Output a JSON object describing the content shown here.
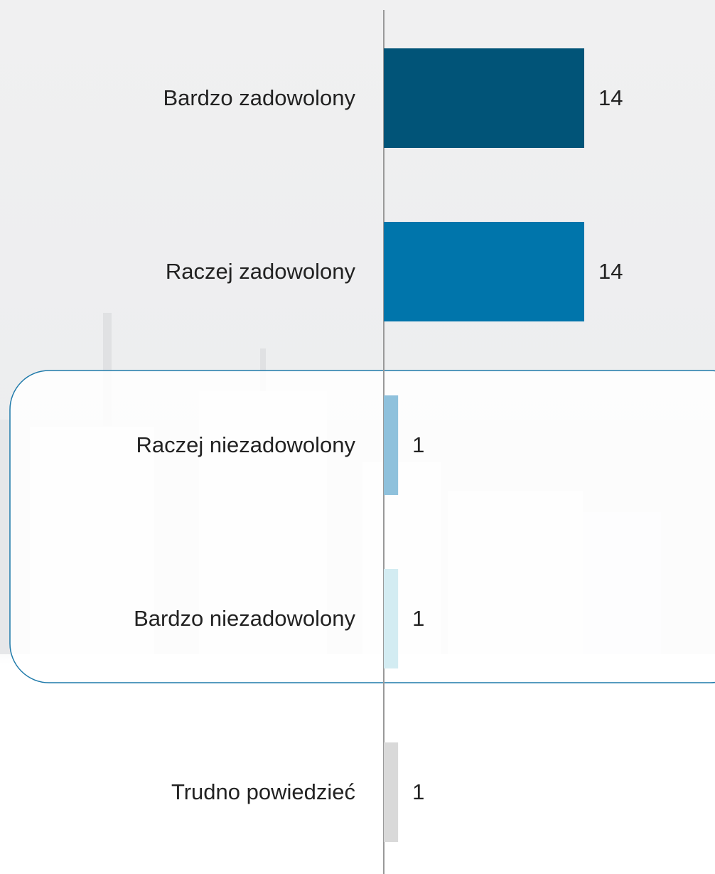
{
  "chart_data": {
    "type": "bar",
    "orientation": "horizontal",
    "categories": [
      "Bardzo zadowolony",
      "Raczej zadowolony",
      "Raczej niezadowolony",
      "Bardzo niezadowolony",
      "Trudno powiedzieć"
    ],
    "values": [
      14,
      14,
      1,
      1,
      1
    ],
    "colors": [
      "#015478",
      "#0075ab",
      "#8fc1dc",
      "#d3ecf2",
      "#d9d9d9"
    ]
  }
}
